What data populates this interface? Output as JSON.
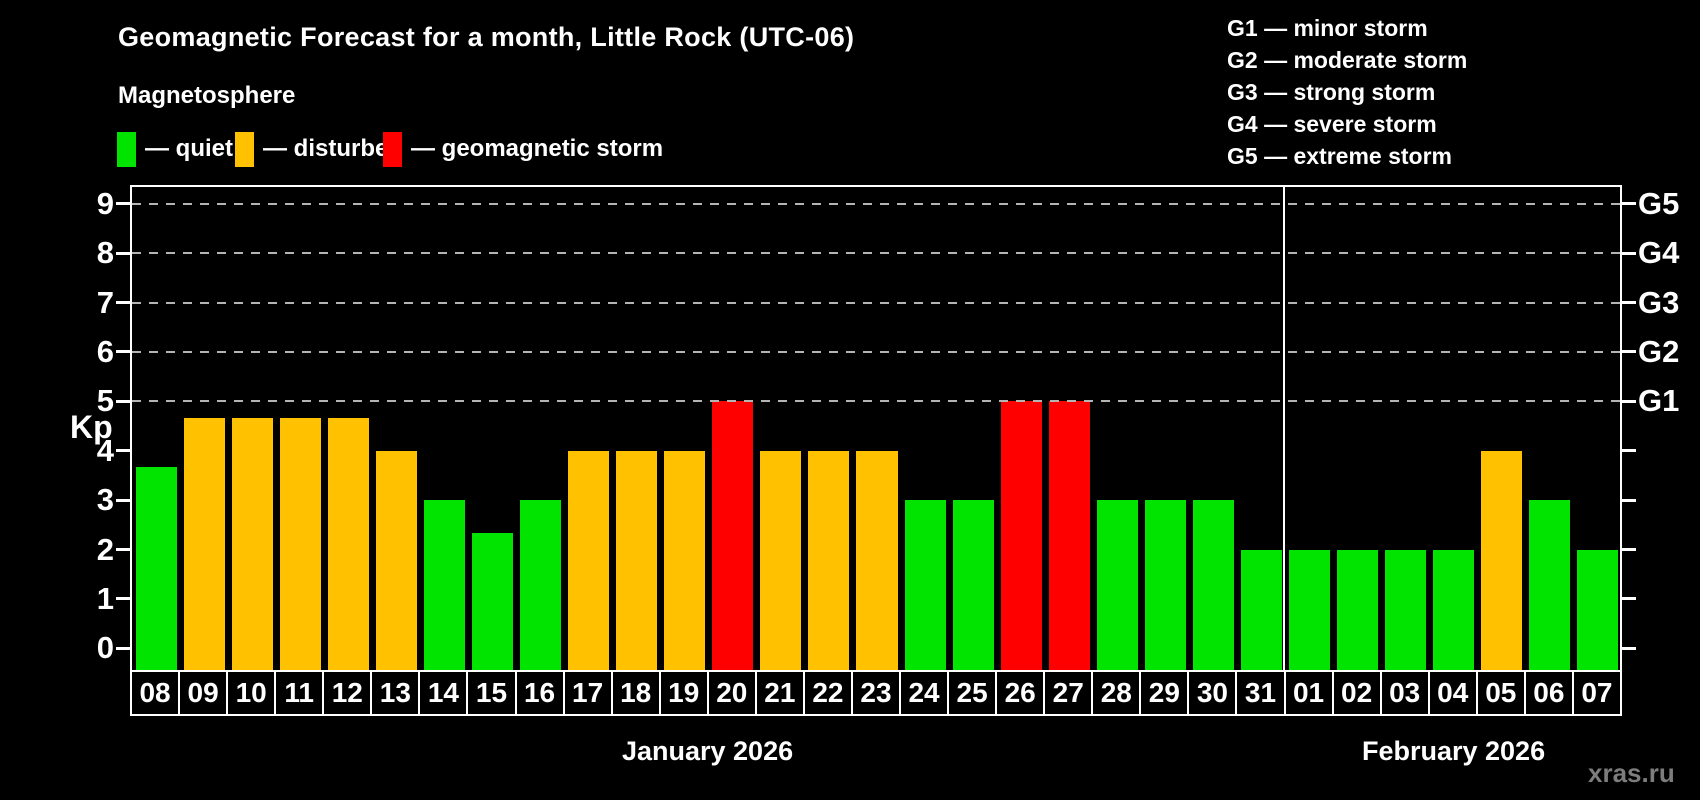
{
  "title": "Geomagnetic Forecast for a month, Little Rock (UTC-06)",
  "magnetosphere_legend": {
    "heading": "Magnetosphere",
    "items": [
      {
        "key": "quiet",
        "label": "— quiet",
        "color": "#00e400"
      },
      {
        "key": "disturbed",
        "label": "— disturbed",
        "color": "#ffc100"
      },
      {
        "key": "storm",
        "label": "— geomagnetic storm",
        "color": "#ff0000"
      }
    ]
  },
  "g_scale_legend": [
    "G1 — minor storm",
    "G2 — moderate storm",
    "G3 — strong storm",
    "G4 — severe storm",
    "G5 — extreme storm"
  ],
  "watermark": "xras.ru",
  "chart_data": {
    "type": "bar",
    "title": "Geomagnetic Forecast for a month, Little Rock (UTC-06)",
    "ylabel": "Kp",
    "ylim": [
      -0.45,
      9.45
    ],
    "y_ticks": [
      0,
      1,
      2,
      3,
      4,
      5,
      6,
      7,
      8,
      9
    ],
    "gridlines_at_kp": [
      5,
      6,
      7,
      8,
      9
    ],
    "grid_style": "dashed horizontal lines at G-storm levels only",
    "right_axis_labels": [
      {
        "kp": 5,
        "label": "G1"
      },
      {
        "kp": 6,
        "label": "G2"
      },
      {
        "kp": 7,
        "label": "G3"
      },
      {
        "kp": 8,
        "label": "G4"
      },
      {
        "kp": 9,
        "label": "G5"
      }
    ],
    "status_colors": {
      "quiet": "#00e400",
      "disturbed": "#ffc100",
      "storm": "#ff0000"
    },
    "months": [
      {
        "label": "January 2026",
        "days": 24
      },
      {
        "label": "February 2026",
        "days": 7
      }
    ],
    "days": [
      {
        "date": "08",
        "kp": 3.67,
        "status": "quiet"
      },
      {
        "date": "09",
        "kp": 4.67,
        "status": "disturbed"
      },
      {
        "date": "10",
        "kp": 4.67,
        "status": "disturbed"
      },
      {
        "date": "11",
        "kp": 4.67,
        "status": "disturbed"
      },
      {
        "date": "12",
        "kp": 4.67,
        "status": "disturbed"
      },
      {
        "date": "13",
        "kp": 4,
        "status": "disturbed"
      },
      {
        "date": "14",
        "kp": 3,
        "status": "quiet"
      },
      {
        "date": "15",
        "kp": 2.33,
        "status": "quiet"
      },
      {
        "date": "16",
        "kp": 3,
        "status": "quiet"
      },
      {
        "date": "17",
        "kp": 4,
        "status": "disturbed"
      },
      {
        "date": "18",
        "kp": 4,
        "status": "disturbed"
      },
      {
        "date": "19",
        "kp": 4,
        "status": "disturbed"
      },
      {
        "date": "20",
        "kp": 5,
        "status": "storm"
      },
      {
        "date": "21",
        "kp": 4,
        "status": "disturbed"
      },
      {
        "date": "22",
        "kp": 4,
        "status": "disturbed"
      },
      {
        "date": "23",
        "kp": 4,
        "status": "disturbed"
      },
      {
        "date": "24",
        "kp": 3,
        "status": "quiet"
      },
      {
        "date": "25",
        "kp": 3,
        "status": "quiet"
      },
      {
        "date": "26",
        "kp": 5,
        "status": "storm"
      },
      {
        "date": "27",
        "kp": 5,
        "status": "storm"
      },
      {
        "date": "28",
        "kp": 3,
        "status": "quiet"
      },
      {
        "date": "29",
        "kp": 3,
        "status": "quiet"
      },
      {
        "date": "30",
        "kp": 3,
        "status": "quiet"
      },
      {
        "date": "31",
        "kp": 2,
        "status": "quiet"
      },
      {
        "date": "01",
        "kp": 2,
        "status": "quiet"
      },
      {
        "date": "02",
        "kp": 2,
        "status": "quiet"
      },
      {
        "date": "03",
        "kp": 2,
        "status": "quiet"
      },
      {
        "date": "04",
        "kp": 2,
        "status": "quiet"
      },
      {
        "date": "05",
        "kp": 4,
        "status": "disturbed"
      },
      {
        "date": "06",
        "kp": 3,
        "status": "quiet"
      },
      {
        "date": "07",
        "kp": 2,
        "status": "quiet"
      }
    ]
  }
}
